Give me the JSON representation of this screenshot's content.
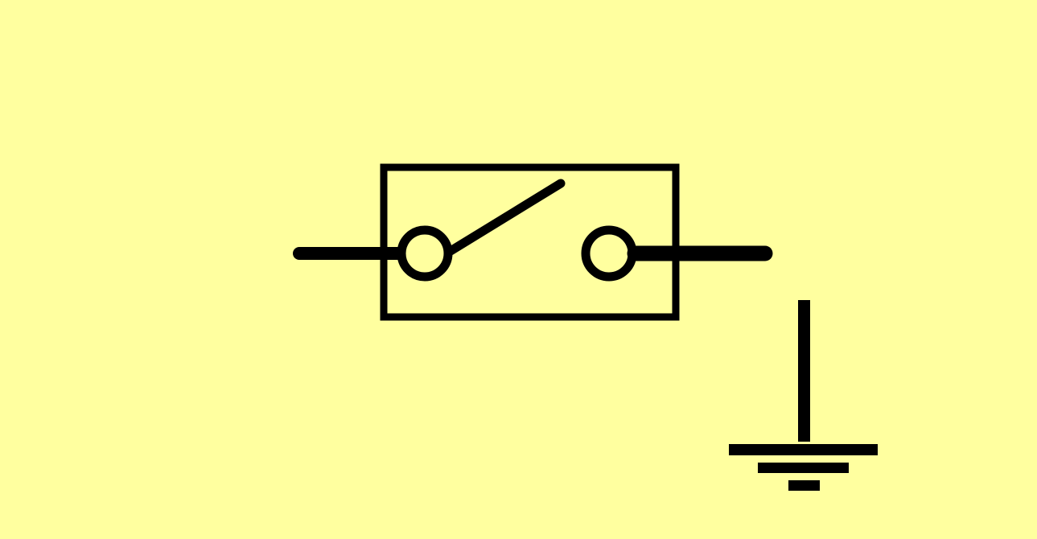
{
  "diagram": {
    "colors": {
      "background": "#FFFF9F",
      "stroke": "#000000"
    },
    "symbols": [
      {
        "kind": "switch-open",
        "state": "open",
        "icon": "switch-icon"
      },
      {
        "kind": "ground",
        "icon": "ground-icon"
      }
    ]
  }
}
